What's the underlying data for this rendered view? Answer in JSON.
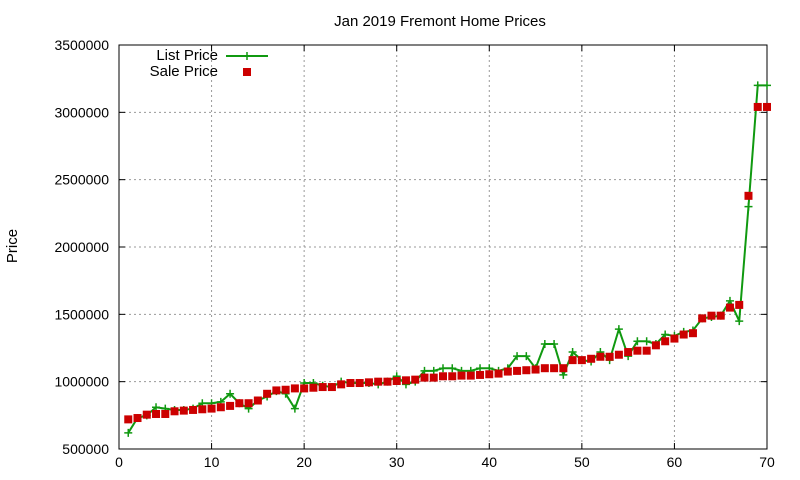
{
  "chart_data": {
    "type": "line",
    "title": "Jan 2019 Fremont Home Prices",
    "xlabel": "",
    "ylabel": "Price",
    "xlim": [
      0,
      70
    ],
    "ylim": [
      500000,
      3500000
    ],
    "x_ticks": [
      0,
      10,
      20,
      30,
      40,
      50,
      60,
      70
    ],
    "y_ticks": [
      500000,
      1000000,
      1500000,
      2000000,
      2500000,
      3000000,
      3500000
    ],
    "x_tick_labels": [
      "0",
      "10",
      "20",
      "30",
      "40",
      "50",
      "60",
      "70"
    ],
    "y_tick_labels": [
      "500000",
      "1000000",
      "1500000",
      "2000000",
      "2500000",
      "3000000",
      "3500000"
    ],
    "grid": true,
    "legend_position": "top-left",
    "x": [
      1,
      2,
      3,
      4,
      5,
      6,
      7,
      8,
      9,
      10,
      11,
      12,
      13,
      14,
      15,
      16,
      17,
      18,
      19,
      20,
      21,
      22,
      23,
      24,
      25,
      26,
      27,
      28,
      29,
      30,
      31,
      32,
      33,
      34,
      35,
      36,
      37,
      38,
      39,
      40,
      41,
      42,
      43,
      44,
      45,
      46,
      47,
      48,
      49,
      50,
      51,
      52,
      53,
      54,
      55,
      56,
      57,
      58,
      59,
      60,
      61,
      62,
      63,
      64,
      65,
      66,
      67,
      68,
      69,
      70
    ],
    "series": [
      {
        "name": "List Price",
        "color": "#109910",
        "marker": "plus",
        "values": [
          620000,
          730000,
          750000,
          810000,
          800000,
          790000,
          790000,
          800000,
          840000,
          840000,
          850000,
          910000,
          840000,
          800000,
          860000,
          890000,
          930000,
          910000,
          800000,
          990000,
          990000,
          970000,
          960000,
          1000000,
          990000,
          990000,
          990000,
          980000,
          1000000,
          1040000,
          980000,
          1000000,
          1080000,
          1080000,
          1100000,
          1100000,
          1080000,
          1080000,
          1100000,
          1100000,
          1080000,
          1100000,
          1190000,
          1190000,
          1100000,
          1280000,
          1280000,
          1050000,
          1220000,
          1160000,
          1150000,
          1220000,
          1160000,
          1390000,
          1190000,
          1300000,
          1300000,
          1280000,
          1350000,
          1340000,
          1370000,
          1380000,
          1470000,
          1480000,
          1490000,
          1600000,
          1450000,
          2300000,
          3200000,
          3200000
        ]
      },
      {
        "name": "Sale Price",
        "color": "#cc0000",
        "marker": "square",
        "values": [
          720000,
          730000,
          755000,
          760000,
          760000,
          780000,
          785000,
          790000,
          795000,
          800000,
          810000,
          820000,
          840000,
          840000,
          860000,
          910000,
          935000,
          940000,
          950000,
          950000,
          955000,
          960000,
          960000,
          980000,
          990000,
          990000,
          995000,
          1000000,
          1000000,
          1005000,
          1010000,
          1015000,
          1030000,
          1030000,
          1040000,
          1040000,
          1045000,
          1045000,
          1050000,
          1055000,
          1060000,
          1075000,
          1080000,
          1085000,
          1090000,
          1100000,
          1100000,
          1100000,
          1160000,
          1160000,
          1170000,
          1185000,
          1185000,
          1200000,
          1220000,
          1230000,
          1230000,
          1270000,
          1300000,
          1320000,
          1350000,
          1360000,
          1470000,
          1490000,
          1490000,
          1550000,
          1570000,
          2380000,
          3040000,
          3040000
        ]
      }
    ]
  }
}
